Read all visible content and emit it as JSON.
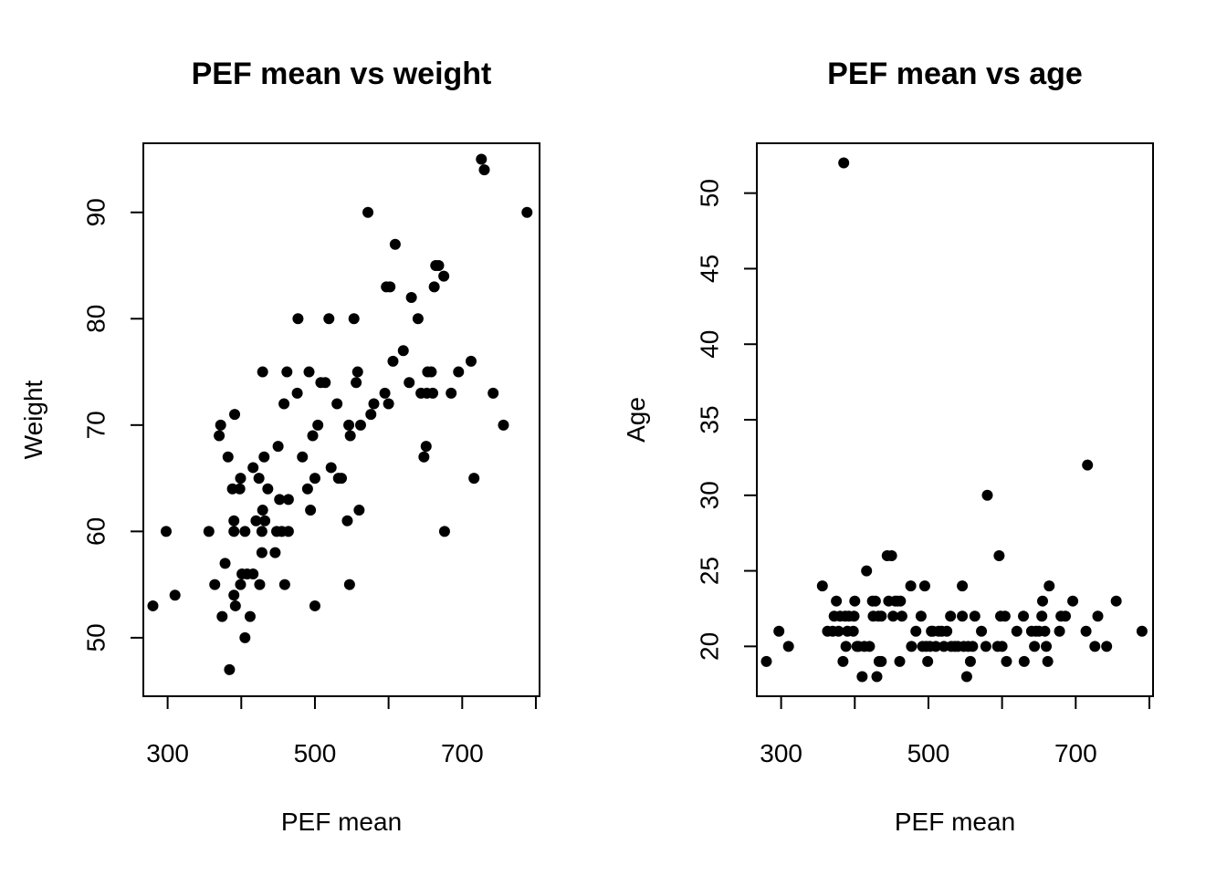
{
  "chart_data": [
    {
      "type": "scatter",
      "title": "PEF mean vs weight",
      "xlabel": "PEF mean",
      "ylabel": "Weight",
      "xlim": [
        267,
        805
      ],
      "ylim": [
        44.5,
        96.5
      ],
      "xticks": [
        300,
        400,
        500,
        600,
        700,
        800
      ],
      "xtick_labels": [
        "300",
        "",
        "500",
        "",
        "700",
        ""
      ],
      "yticks": [
        50,
        60,
        70,
        80,
        90
      ],
      "ytick_labels": [
        "50",
        "60",
        "70",
        "80",
        "90"
      ],
      "grid": false,
      "legend": "none",
      "points": [
        [
          280,
          53
        ],
        [
          298,
          60
        ],
        [
          310,
          54
        ],
        [
          356,
          60
        ],
        [
          364,
          55
        ],
        [
          370,
          69
        ],
        [
          372,
          70
        ],
        [
          374,
          52
        ],
        [
          378,
          57
        ],
        [
          382,
          67
        ],
        [
          384,
          47
        ],
        [
          388,
          64
        ],
        [
          390,
          61
        ],
        [
          390,
          60
        ],
        [
          390,
          54
        ],
        [
          391,
          71
        ],
        [
          392,
          53
        ],
        [
          398,
          64
        ],
        [
          399,
          65
        ],
        [
          399,
          55
        ],
        [
          401,
          56
        ],
        [
          405,
          50
        ],
        [
          405,
          60
        ],
        [
          408,
          56
        ],
        [
          412,
          52
        ],
        [
          416,
          66
        ],
        [
          416,
          56
        ],
        [
          420,
          61
        ],
        [
          424,
          65
        ],
        [
          425,
          55
        ],
        [
          428,
          58
        ],
        [
          428,
          60
        ],
        [
          429,
          62
        ],
        [
          429,
          75
        ],
        [
          431,
          67
        ],
        [
          432,
          61
        ],
        [
          436,
          64
        ],
        [
          446,
          58
        ],
        [
          448,
          60
        ],
        [
          450,
          68
        ],
        [
          452,
          63
        ],
        [
          455,
          60
        ],
        [
          458,
          72
        ],
        [
          459,
          55
        ],
        [
          462,
          75
        ],
        [
          464,
          63
        ],
        [
          464,
          60
        ],
        [
          476,
          73
        ],
        [
          477,
          80
        ],
        [
          483,
          67
        ],
        [
          490,
          64
        ],
        [
          492,
          75
        ],
        [
          494,
          62
        ],
        [
          497,
          69
        ],
        [
          500,
          65
        ],
        [
          500,
          53
        ],
        [
          504,
          70
        ],
        [
          508,
          74
        ],
        [
          514,
          74
        ],
        [
          519,
          80
        ],
        [
          522,
          66
        ],
        [
          530,
          72
        ],
        [
          532,
          65
        ],
        [
          536,
          65
        ],
        [
          544,
          61
        ],
        [
          546,
          70
        ],
        [
          547,
          55
        ],
        [
          548,
          69
        ],
        [
          553,
          80
        ],
        [
          556,
          74
        ],
        [
          558,
          75
        ],
        [
          560,
          62
        ],
        [
          562,
          70
        ],
        [
          572,
          90
        ],
        [
          576,
          71
        ],
        [
          580,
          72
        ],
        [
          595,
          73
        ],
        [
          597,
          83
        ],
        [
          600,
          72
        ],
        [
          602,
          83
        ],
        [
          606,
          76
        ],
        [
          609,
          87
        ],
        [
          620,
          77
        ],
        [
          628,
          74
        ],
        [
          631,
          82
        ],
        [
          640,
          80
        ],
        [
          644,
          73
        ],
        [
          648,
          67
        ],
        [
          651,
          68
        ],
        [
          652,
          73
        ],
        [
          653,
          75
        ],
        [
          658,
          75
        ],
        [
          660,
          73
        ],
        [
          662,
          83
        ],
        [
          664,
          85
        ],
        [
          668,
          85
        ],
        [
          675,
          84
        ],
        [
          676,
          60
        ],
        [
          685,
          73
        ],
        [
          695,
          75
        ],
        [
          712,
          76
        ],
        [
          716,
          65
        ],
        [
          726,
          95
        ],
        [
          730,
          94
        ],
        [
          742,
          73
        ],
        [
          756,
          70
        ],
        [
          788,
          90
        ]
      ]
    },
    {
      "type": "scatter",
      "title": "PEF mean vs age",
      "xlabel": "PEF mean",
      "ylabel": "Age",
      "xlim": [
        267,
        805
      ],
      "ylim": [
        16.7,
        53.3
      ],
      "xticks": [
        300,
        400,
        500,
        600,
        700,
        800
      ],
      "xtick_labels": [
        "300",
        "",
        "500",
        "",
        "700",
        ""
      ],
      "yticks": [
        20,
        25,
        30,
        35,
        40,
        45,
        50
      ],
      "ytick_labels": [
        "20",
        "25",
        "30",
        "35",
        "40",
        "45",
        "50"
      ],
      "grid": false,
      "legend": "none",
      "points": [
        [
          280,
          19
        ],
        [
          297,
          21
        ],
        [
          310,
          20
        ],
        [
          356,
          24
        ],
        [
          363,
          21
        ],
        [
          370,
          21
        ],
        [
          372,
          22
        ],
        [
          375,
          23
        ],
        [
          378,
          21
        ],
        [
          380,
          22
        ],
        [
          384,
          19
        ],
        [
          385,
          52
        ],
        [
          387,
          22
        ],
        [
          388,
          20
        ],
        [
          390,
          21
        ],
        [
          392,
          22
        ],
        [
          398,
          21
        ],
        [
          399,
          22
        ],
        [
          400,
          23
        ],
        [
          403,
          20
        ],
        [
          405,
          20
        ],
        [
          410,
          18
        ],
        [
          413,
          20
        ],
        [
          416,
          25
        ],
        [
          420,
          20
        ],
        [
          424,
          23
        ],
        [
          425,
          22
        ],
        [
          428,
          23
        ],
        [
          430,
          18
        ],
        [
          432,
          22
        ],
        [
          433,
          19
        ],
        [
          436,
          19
        ],
        [
          436,
          22
        ],
        [
          444,
          26
        ],
        [
          446,
          23
        ],
        [
          450,
          26
        ],
        [
          452,
          22
        ],
        [
          455,
          23
        ],
        [
          458,
          23
        ],
        [
          461,
          19
        ],
        [
          462,
          23
        ],
        [
          464,
          22
        ],
        [
          476,
          24
        ],
        [
          477,
          20
        ],
        [
          483,
          21
        ],
        [
          490,
          22
        ],
        [
          492,
          20
        ],
        [
          495,
          24
        ],
        [
          497,
          20
        ],
        [
          499,
          19
        ],
        [
          502,
          20
        ],
        [
          504,
          21
        ],
        [
          506,
          21
        ],
        [
          510,
          20
        ],
        [
          514,
          21
        ],
        [
          518,
          21
        ],
        [
          521,
          20
        ],
        [
          525,
          21
        ],
        [
          530,
          22
        ],
        [
          531,
          20
        ],
        [
          536,
          20
        ],
        [
          540,
          20
        ],
        [
          546,
          24
        ],
        [
          546,
          22
        ],
        [
          548,
          20
        ],
        [
          552,
          18
        ],
        [
          554,
          20
        ],
        [
          557,
          19
        ],
        [
          560,
          20
        ],
        [
          563,
          22
        ],
        [
          572,
          21
        ],
        [
          578,
          20
        ],
        [
          580,
          30
        ],
        [
          594,
          20
        ],
        [
          596,
          26
        ],
        [
          598,
          22
        ],
        [
          600,
          20
        ],
        [
          604,
          22
        ],
        [
          606,
          19
        ],
        [
          620,
          21
        ],
        [
          629,
          22
        ],
        [
          630,
          19
        ],
        [
          640,
          21
        ],
        [
          644,
          20
        ],
        [
          646,
          21
        ],
        [
          650,
          21
        ],
        [
          654,
          22
        ],
        [
          655,
          23
        ],
        [
          658,
          21
        ],
        [
          660,
          20
        ],
        [
          662,
          19
        ],
        [
          664,
          24
        ],
        [
          678,
          21
        ],
        [
          680,
          22
        ],
        [
          686,
          22
        ],
        [
          696,
          23
        ],
        [
          714,
          21
        ],
        [
          716,
          32
        ],
        [
          726,
          20
        ],
        [
          730,
          22
        ],
        [
          742,
          20
        ],
        [
          755,
          23
        ],
        [
          790,
          21
        ]
      ]
    }
  ]
}
